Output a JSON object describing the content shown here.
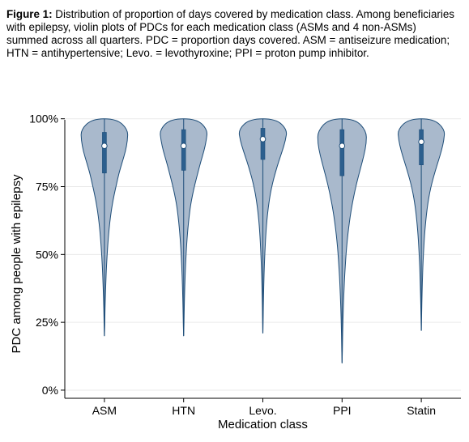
{
  "caption": {
    "label": "Figure 1:",
    "text": " Distribution of proportion of days covered by medication class. Among beneficiaries with epilepsy, violin plots of PDCs for each medication class (ASMs and 4 non-ASMs) summed across all quarters. PDC = proportion days covered. ASM = antiseizure medication; HTN = antihypertensive; Levo. = levothyroxine; PPI = proton pump inhibitor."
  },
  "chart_data": {
    "type": "violin",
    "xlabel": "Medication class",
    "ylabel": "PDC among people with epilepsy",
    "categories": [
      "ASM",
      "HTN",
      "Levo.",
      "PPI",
      "Statin"
    ],
    "y_ticks": [
      0,
      25,
      50,
      75,
      100
    ],
    "y_tick_labels": [
      "0%",
      "25%",
      "50%",
      "75%",
      "100%"
    ],
    "ylim": [
      -3,
      102
    ],
    "grid": "horizontal",
    "colors": {
      "fill": "#a9b9cc",
      "outline": "#1f4e79",
      "box": "#2c5f8e",
      "median": "#ffffff"
    },
    "series": [
      {
        "category": "ASM",
        "median": 90,
        "q1": 80,
        "q3": 95,
        "min": 20,
        "max": 100,
        "halfwidth": [
          0,
          0.4,
          0.6,
          0.9,
          1.3,
          1.8,
          2.3,
          3,
          3.8,
          4.8,
          6,
          7.5,
          9.5,
          12,
          15,
          18,
          22,
          26,
          28.5,
          29,
          15
        ]
      },
      {
        "category": "HTN",
        "median": 90,
        "q1": 81,
        "q3": 96,
        "min": 20,
        "max": 100,
        "halfwidth": [
          0,
          0.4,
          0.6,
          0.9,
          1.2,
          1.6,
          2.1,
          2.7,
          3.4,
          4.3,
          5.4,
          6.8,
          8.5,
          11,
          14,
          17.5,
          21,
          25,
          28,
          29.5,
          16
        ]
      },
      {
        "category": "Levo.",
        "median": 92.5,
        "q1": 85,
        "q3": 96.5,
        "min": 21,
        "max": 100,
        "halfwidth": [
          0,
          0.3,
          0.5,
          0.7,
          1,
          1.3,
          1.7,
          2.2,
          2.8,
          3.5,
          4.4,
          5.6,
          7.2,
          9.2,
          12,
          15.5,
          19.5,
          24,
          28,
          30,
          16
        ]
      },
      {
        "category": "PPI",
        "median": 90,
        "q1": 79,
        "q3": 96,
        "min": 10,
        "max": 100,
        "halfwidth": [
          0,
          0.4,
          0.6,
          0.9,
          1.3,
          1.8,
          2.4,
          3.1,
          4,
          5,
          6.3,
          8,
          10,
          12.5,
          15.5,
          19,
          23,
          27,
          30,
          30,
          16
        ]
      },
      {
        "category": "Statin",
        "median": 91.5,
        "q1": 83,
        "q3": 96,
        "min": 22,
        "max": 100,
        "halfwidth": [
          0,
          0.3,
          0.5,
          0.8,
          1.1,
          1.5,
          1.9,
          2.5,
          3.2,
          4,
          5.1,
          6.4,
          8.1,
          10.3,
          13.3,
          17,
          21,
          25,
          28,
          29,
          15
        ]
      }
    ]
  }
}
